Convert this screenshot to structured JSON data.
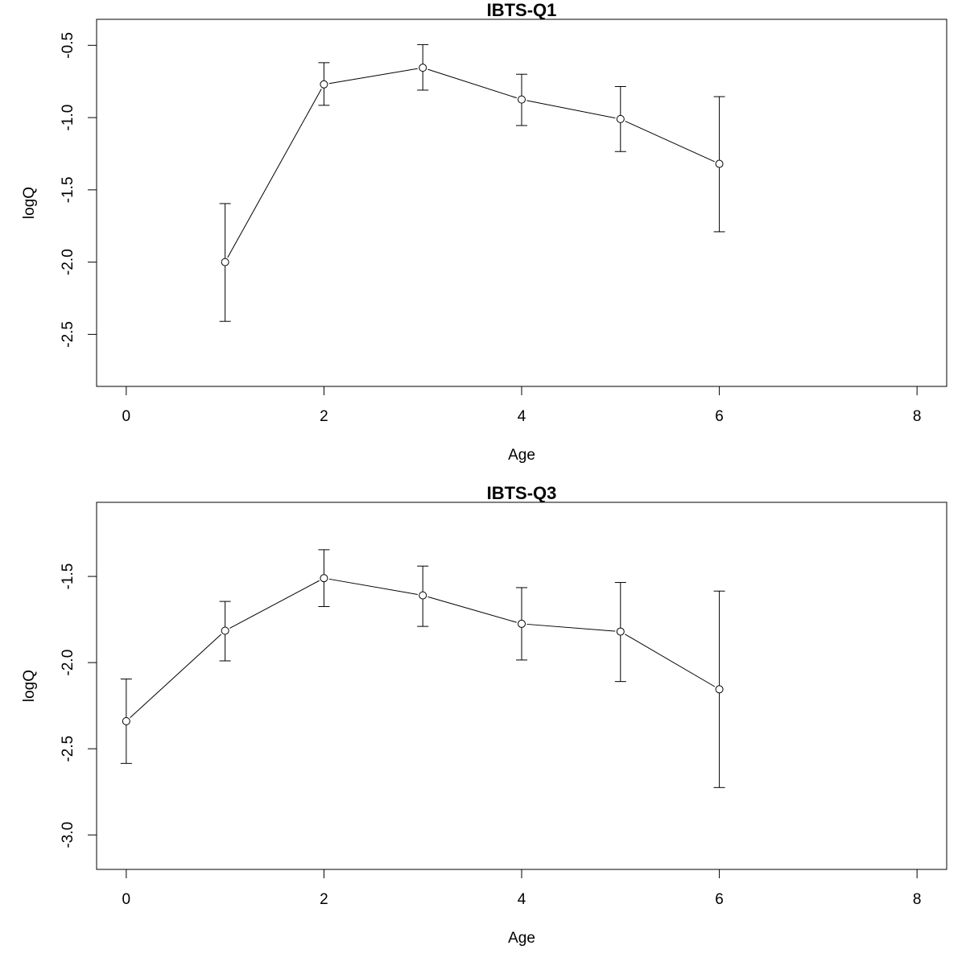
{
  "chart_data": [
    {
      "type": "scatter",
      "title": "IBTS-Q1",
      "xlabel": "Age",
      "ylabel": "logQ",
      "xlim": [
        -0.3,
        8.3
      ],
      "ylim": [
        -2.86,
        -0.32
      ],
      "xticks": [
        "0",
        "2",
        "4",
        "6",
        "8"
      ],
      "yticks": [
        "-0.5",
        "-1.0",
        "-1.5",
        "-2.0",
        "-2.5"
      ],
      "grid": false,
      "series": [
        {
          "x": [
            1,
            2,
            3,
            4,
            5,
            6
          ],
          "y": [
            -2.0,
            -0.77,
            -0.655,
            -0.875,
            -1.01,
            -1.32
          ],
          "lower": [
            -2.41,
            -0.915,
            -0.81,
            -1.055,
            -1.235,
            -1.79
          ],
          "upper": [
            -1.595,
            -0.62,
            -0.495,
            -0.7,
            -0.785,
            -0.855
          ]
        }
      ]
    },
    {
      "type": "scatter",
      "title": "IBTS-Q3",
      "xlabel": "Age",
      "ylabel": "logQ",
      "xlim": [
        -0.3,
        8.3
      ],
      "ylim": [
        -3.2,
        -1.07
      ],
      "xticks": [
        "0",
        "2",
        "4",
        "6",
        "8"
      ],
      "yticks": [
        "-1.5",
        "-2.0",
        "-2.5",
        "-3.0"
      ],
      "grid": false,
      "series": [
        {
          "x": [
            0,
            1,
            2,
            3,
            4,
            5,
            6
          ],
          "y": [
            -2.34,
            -1.815,
            -1.51,
            -1.61,
            -1.775,
            -1.82,
            -2.155
          ],
          "lower": [
            -2.585,
            -1.99,
            -1.675,
            -1.79,
            -1.985,
            -2.11,
            -2.725
          ],
          "upper": [
            -2.095,
            -1.645,
            -1.345,
            -1.44,
            -1.565,
            -1.535,
            -1.585
          ]
        }
      ]
    }
  ]
}
